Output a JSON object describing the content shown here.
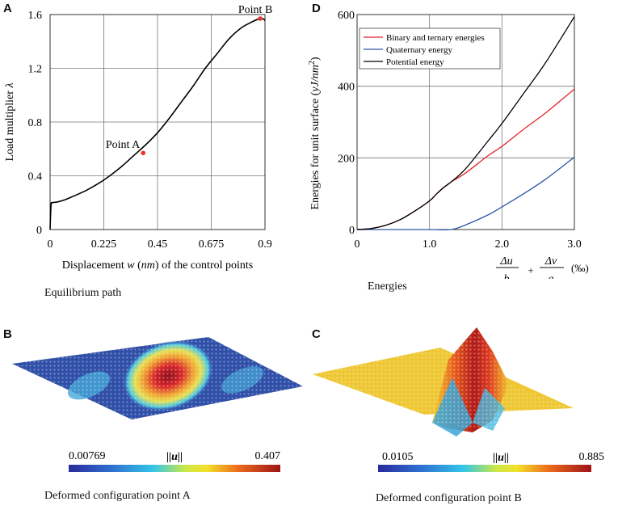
{
  "panels": {
    "A": {
      "letter": "A",
      "caption": "Equilibrium path"
    },
    "B": {
      "letter": "B",
      "caption": "Deformed configuration point A",
      "colorbar": {
        "min": "0.00769",
        "max": "0.407",
        "label": "||u||"
      }
    },
    "C": {
      "letter": "C",
      "caption": "Deformed configuration point B",
      "colorbar": {
        "min": "0.0105",
        "max": "0.885",
        "label": "||u||"
      }
    },
    "D": {
      "letter": "D",
      "caption": "Energies"
    }
  },
  "colors": {
    "red": "#e0242b",
    "blue": "#2c56a8",
    "black": "#000000",
    "grid": "#777777",
    "point": "#e8332e"
  },
  "chart_data": [
    {
      "id": "A",
      "type": "line",
      "title": "",
      "xlabel_parts": [
        "Displacement ",
        "w",
        " (",
        "nm",
        ") of the control points"
      ],
      "ylabel_parts": [
        "Load multiplier ",
        "λ"
      ],
      "xlim": [
        0,
        0.9
      ],
      "ylim": [
        0,
        1.6
      ],
      "xticks": [
        "0",
        "0.225",
        "0.45",
        "0.675",
        "0.9"
      ],
      "xtick_values": [
        0,
        0.225,
        0.45,
        0.675,
        0.9
      ],
      "yticks": [
        "0",
        "0.4",
        "0.8",
        "1.2",
        "1.6"
      ],
      "ytick_values": [
        0,
        0.4,
        0.8,
        1.2,
        1.6
      ],
      "grid": true,
      "series": [
        {
          "name": "equilibrium path",
          "x": [
            0,
            0.004,
            0.01,
            0.03,
            0.06,
            0.1,
            0.15,
            0.2,
            0.25,
            0.3,
            0.35,
            0.4,
            0.45,
            0.5,
            0.55,
            0.6,
            0.65,
            0.7,
            0.75,
            0.8,
            0.84,
            0.87,
            0.89,
            0.9
          ],
          "y": [
            0,
            0.18,
            0.2,
            0.205,
            0.22,
            0.25,
            0.29,
            0.34,
            0.4,
            0.47,
            0.55,
            0.63,
            0.72,
            0.83,
            0.95,
            1.07,
            1.2,
            1.31,
            1.42,
            1.5,
            1.54,
            1.565,
            1.57,
            1.555
          ]
        }
      ],
      "annotations": [
        {
          "label": "Point A",
          "x": 0.39,
          "y": 0.57
        },
        {
          "label": "Point B",
          "x": 0.88,
          "y": 1.57
        }
      ]
    },
    {
      "id": "D",
      "type": "line",
      "title": "",
      "xlabel_parts": [
        "Δu",
        "b",
        "+",
        "Δv",
        "a",
        "(‰)"
      ],
      "ylabel_parts": [
        "Energies for unit surface (",
        "yJ/nm",
        "2",
        ")"
      ],
      "xlim": [
        0,
        3
      ],
      "ylim": [
        0,
        600
      ],
      "xticks": [
        "0",
        "1.0",
        "2.0",
        "3.0"
      ],
      "xtick_values": [
        0,
        1,
        2,
        3
      ],
      "yticks": [
        "0",
        "200",
        "400",
        "600"
      ],
      "ytick_values": [
        0,
        200,
        400,
        600
      ],
      "grid": true,
      "legend_position": "top-left",
      "series": [
        {
          "name": "Binary and ternary energies",
          "color": "red",
          "x": [
            0,
            0.2,
            0.4,
            0.6,
            0.8,
            1.0,
            1.1,
            1.2,
            1.3,
            1.5,
            1.8,
            2.0,
            2.3,
            2.6,
            3.0
          ],
          "y": [
            0,
            3,
            12,
            28,
            52,
            80,
            100,
            118,
            133,
            158,
            205,
            232,
            280,
            325,
            392
          ]
        },
        {
          "name": "Quaternary energy",
          "color": "blue",
          "x": [
            0,
            0.5,
            1.0,
            1.3,
            1.5,
            1.8,
            2.0,
            2.3,
            2.6,
            3.0
          ],
          "y": [
            0,
            0,
            0,
            0,
            13,
            40,
            63,
            100,
            140,
            202
          ]
        },
        {
          "name": "Potential energy",
          "color": "black",
          "x": [
            0,
            0.2,
            0.4,
            0.6,
            0.8,
            1.0,
            1.1,
            1.2,
            1.3,
            1.5,
            1.8,
            2.0,
            2.3,
            2.6,
            3.0
          ],
          "y": [
            0,
            3,
            12,
            28,
            52,
            80,
            100,
            118,
            133,
            170,
            245,
            296,
            380,
            465,
            594
          ]
        }
      ]
    }
  ]
}
